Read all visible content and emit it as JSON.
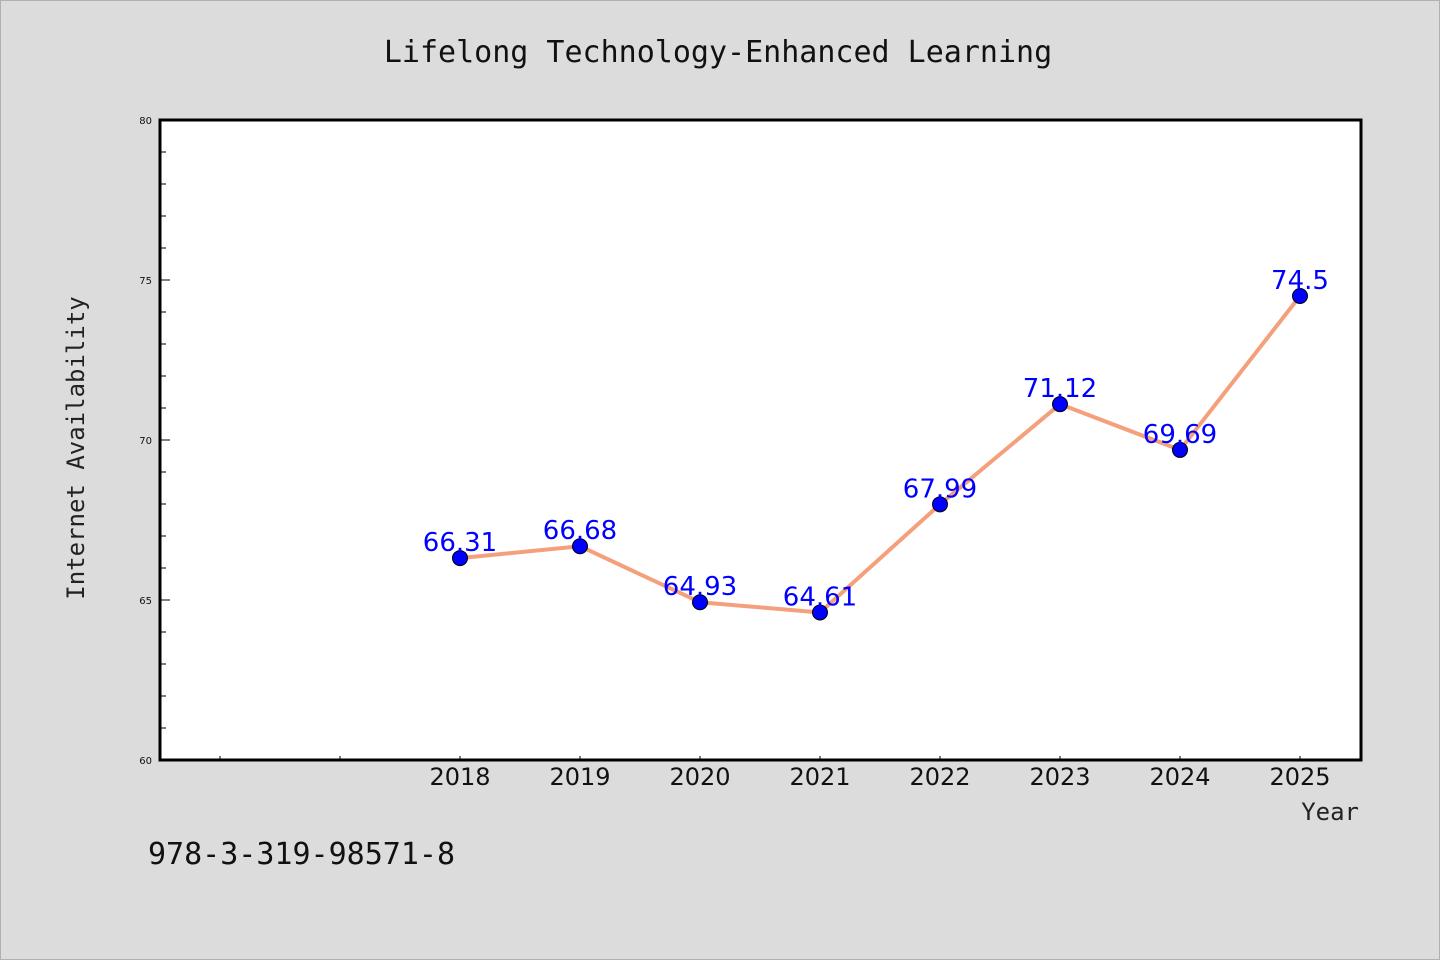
{
  "chart_data": {
    "type": "line",
    "title": "Lifelong Technology-Enhanced Learning",
    "xlabel": "Year",
    "ylabel": "Internet Availability",
    "categories": [
      "2018",
      "2019",
      "2020",
      "2021",
      "2022",
      "2023",
      "2024",
      "2025"
    ],
    "series": [
      {
        "values": [
          66.31,
          66.68,
          64.93,
          64.61,
          67.99,
          71.12,
          69.69,
          74.5
        ]
      }
    ],
    "data_labels": [
      "66.31",
      "66.68",
      "64.93",
      "64.61",
      "67.99",
      "71.12",
      "69.69",
      "74.5"
    ],
    "ylim": [
      60,
      80
    ],
    "yticks": [
      60,
      65,
      70,
      75,
      80
    ],
    "grid": false,
    "legend": "none",
    "colors": {
      "line": "#f4a07c",
      "marker": "#0000ff",
      "data_label": "#0000ff",
      "background": "#dcdcdc",
      "plot_background": "#ffffff"
    }
  },
  "footer": {
    "isbn": "978-3-319-98571-8"
  }
}
